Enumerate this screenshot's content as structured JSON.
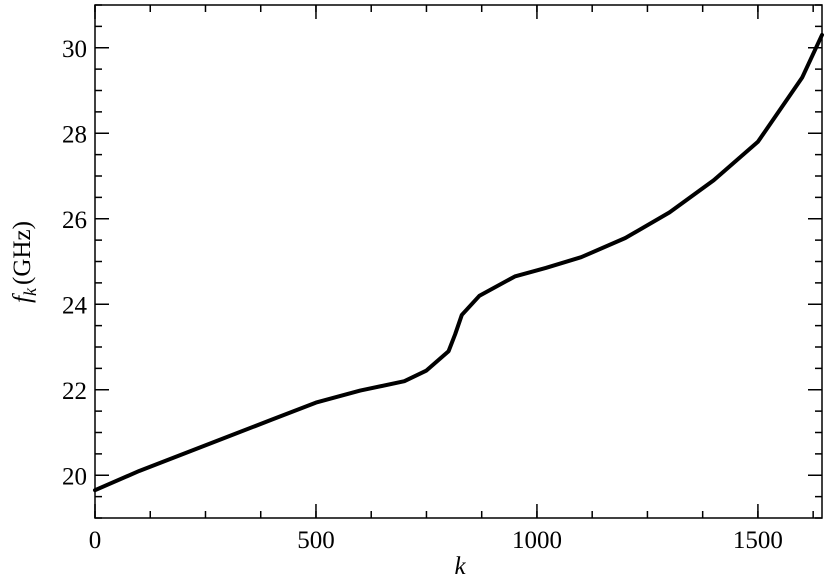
{
  "chart_data": {
    "type": "line",
    "xlabel": "k",
    "ylabel": "f",
    "ylabel_subscript": "k",
    "ylabel_unit": "(GHz)",
    "x": [
      0,
      100,
      200,
      300,
      400,
      500,
      600,
      700,
      750,
      800,
      815,
      830,
      870,
      950,
      1020,
      1100,
      1200,
      1300,
      1400,
      1500,
      1600,
      1645
    ],
    "series": [
      {
        "color": "#000000",
        "values": [
          19.65,
          20.1,
          20.5,
          20.9,
          21.3,
          21.7,
          21.98,
          22.2,
          22.45,
          22.9,
          23.3,
          23.75,
          24.2,
          24.65,
          24.85,
          25.1,
          25.55,
          26.15,
          26.9,
          27.8,
          29.3,
          30.3
        ]
      }
    ],
    "xlim": [
      0,
      1645
    ],
    "ylim": [
      19,
      31
    ],
    "xticks": [
      0,
      500,
      1000,
      1500
    ],
    "yticks": [
      20,
      22,
      24,
      26,
      28,
      30
    ],
    "x_minor_step": 125,
    "y_minor_step": 0.5
  }
}
